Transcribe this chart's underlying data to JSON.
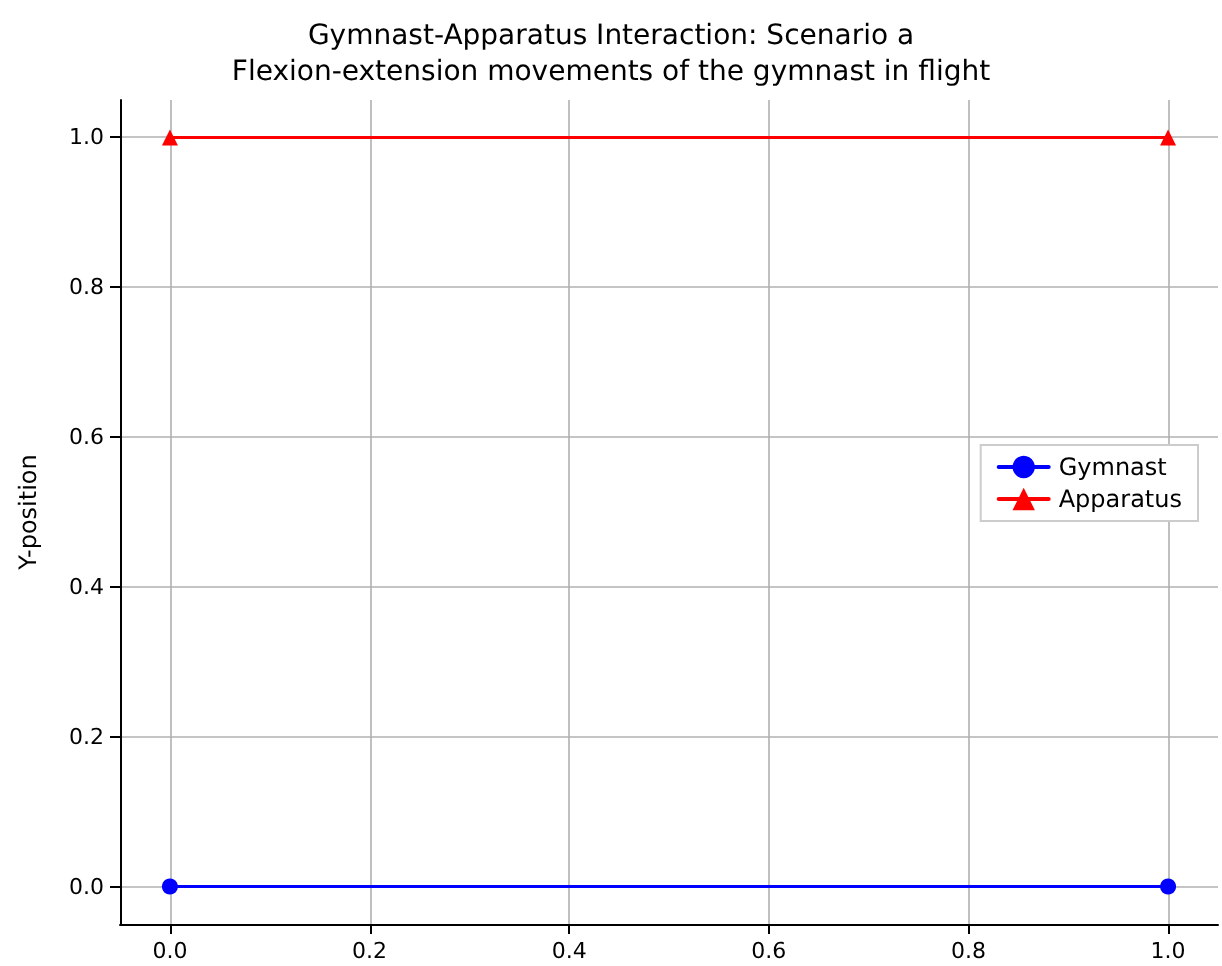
{
  "chart_data": {
    "type": "line",
    "title": "Gymnast-Apparatus Interaction: Scenario a\nFlexion-extension movements of the gymnast in flight",
    "ylabel": "Y-position",
    "x": [
      0,
      1
    ],
    "series": [
      {
        "name": "Gymnast",
        "color": "#0000ff",
        "values": [
          0,
          0
        ],
        "marker": "circle"
      },
      {
        "name": "Apparatus",
        "color": "#ff0000",
        "values": [
          1,
          1
        ],
        "marker": "triangle"
      }
    ],
    "xlim": [
      -0.05,
      1.05
    ],
    "ylim": [
      -0.05,
      1.05
    ],
    "xticks": [
      {
        "value": 0,
        "label": "0.0"
      },
      {
        "value": 0.2,
        "label": "0.2"
      },
      {
        "value": 0.4,
        "label": "0.4"
      },
      {
        "value": 0.6,
        "label": "0.6"
      },
      {
        "value": 0.8,
        "label": "0.8"
      },
      {
        "value": 1,
        "label": "1.0"
      }
    ],
    "yticks": [
      {
        "value": 0,
        "label": "0.0"
      },
      {
        "value": 0.2,
        "label": "0.2"
      },
      {
        "value": 0.4,
        "label": "0.4"
      },
      {
        "value": 0.6,
        "label": "0.6"
      },
      {
        "value": 0.8,
        "label": "0.8"
      },
      {
        "value": 1,
        "label": "1.0"
      }
    ],
    "grid": true,
    "legend": "right",
    "line_style": "solid"
  }
}
